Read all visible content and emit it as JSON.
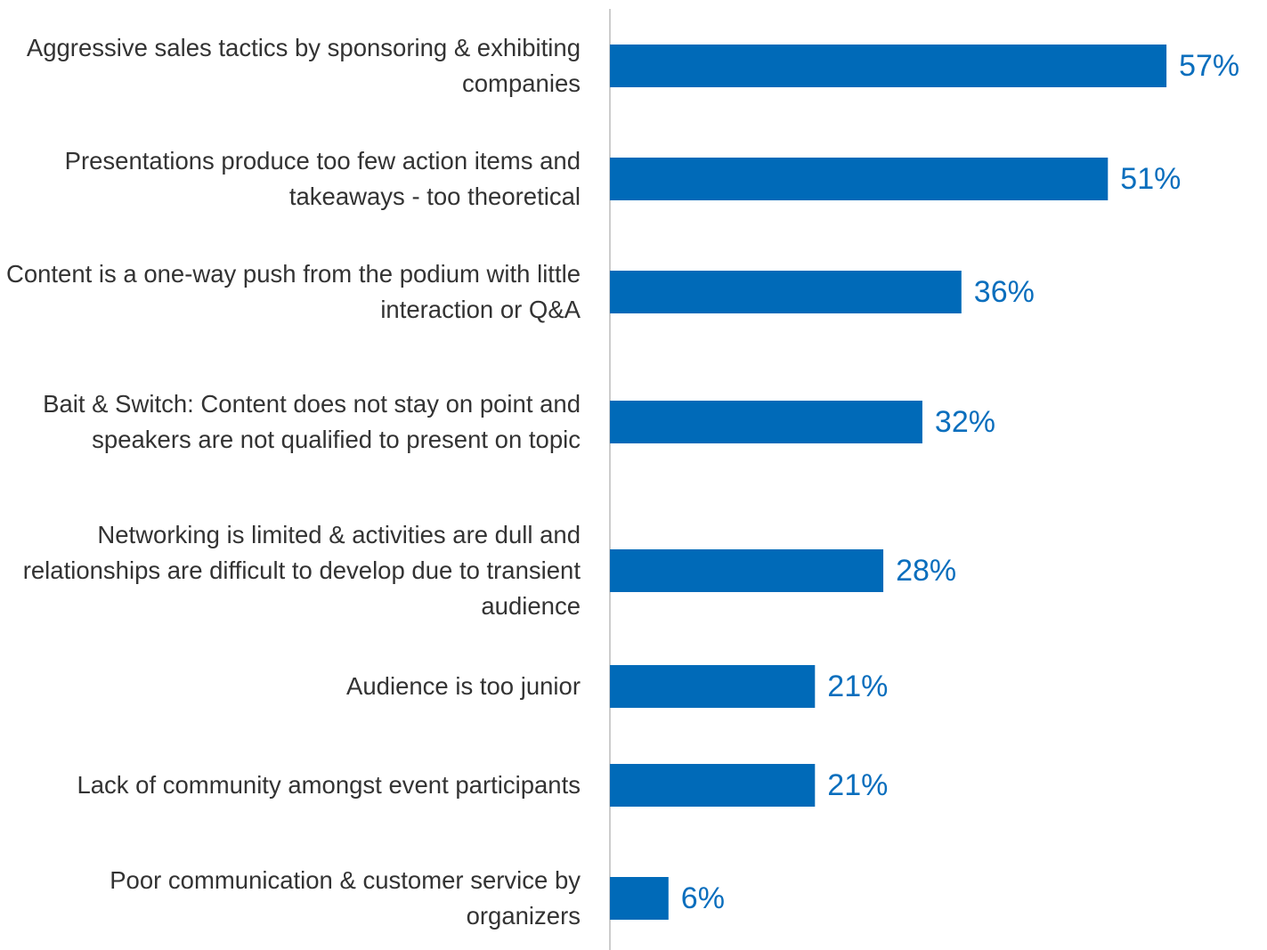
{
  "chart_data": {
    "type": "bar",
    "orientation": "horizontal",
    "categories": [
      "Aggressive sales tactics by sponsoring & exhibiting companies",
      "Presentations produce too few action items and takeaways - too theoretical",
      "Content is a one-way push from the podium with little interaction or Q&A",
      "Bait & Switch: Content does not stay on point and speakers are not qualified to present on topic",
      "Networking is limited & activities are dull and relationships are difficult to develop due to transient audience",
      "Audience is too junior",
      "Lack of community amongst event participants",
      "Poor communication & customer service by organizers"
    ],
    "values": [
      57,
      51,
      36,
      32,
      28,
      21,
      21,
      6
    ],
    "value_labels": [
      "57%",
      "51%",
      "36%",
      "32%",
      "28%",
      "21%",
      "21%",
      "6%"
    ],
    "color": "#006ab8",
    "xlim": [
      0,
      60
    ]
  }
}
